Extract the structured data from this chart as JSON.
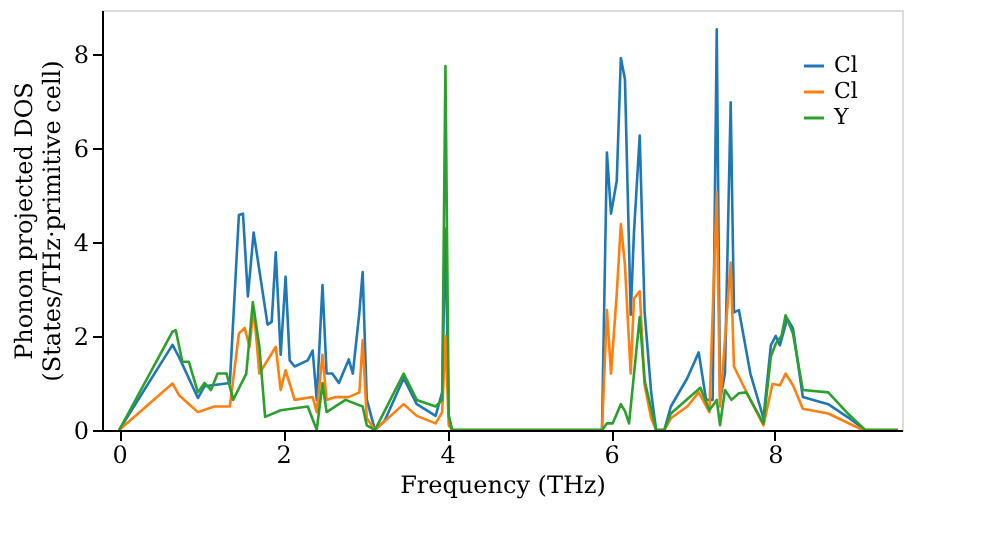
{
  "chart_data": {
    "type": "line",
    "xlabel": "Frequency (THz)",
    "ylabel": "Phonon projected DOS\n(States/THz·primitive cell)",
    "xlim": [
      -0.21,
      9.55
    ],
    "ylim": [
      0,
      8.93
    ],
    "xticks": [
      0,
      2,
      4,
      6,
      8
    ],
    "yticks": [
      0,
      2,
      4,
      6,
      8
    ],
    "legend": "top right",
    "grid": false,
    "series": [
      {
        "name": "Cl",
        "color": "#1f77b4",
        "x": [
          0,
          0.65,
          0.73,
          0.96,
          1.04,
          1.35,
          1.46,
          1.51,
          1.57,
          1.64,
          1.81,
          1.86,
          1.91,
          1.97,
          2.03,
          2.08,
          2.14,
          2.3,
          2.36,
          2.41,
          2.48,
          2.53,
          2.6,
          2.68,
          2.8,
          2.85,
          2.93,
          2.97,
          3.02,
          3.12,
          3.24,
          3.47,
          3.63,
          3.86,
          3.94,
          3.98,
          4.02,
          4.06,
          5.89,
          5.95,
          6.0,
          6.07,
          6.12,
          6.17,
          6.24,
          6.28,
          6.35,
          6.41,
          6.49,
          6.55,
          6.65,
          6.73,
          6.93,
          7.07,
          7.16,
          7.24,
          7.29,
          7.33,
          7.39,
          7.46,
          7.5,
          7.56,
          7.7,
          7.86,
          7.95,
          8.01,
          8.06,
          8.15,
          8.22,
          8.34,
          8.65,
          8.89,
          9.1,
          9.5
        ],
        "values": [
          0,
          1.81,
          1.55,
          0.68,
          0.93,
          1.0,
          4.57,
          4.6,
          2.84,
          4.2,
          2.24,
          2.3,
          3.78,
          1.6,
          3.26,
          1.48,
          1.35,
          1.48,
          1.69,
          0.64,
          3.08,
          1.2,
          1.2,
          1.0,
          1.5,
          1.2,
          2.5,
          3.36,
          0.65,
          0,
          0.2,
          1.1,
          0.55,
          0.3,
          0.8,
          4.28,
          0.3,
          0,
          0,
          5.9,
          4.6,
          5.3,
          7.91,
          7.46,
          2.45,
          4.2,
          6.26,
          2.5,
          0.8,
          0,
          0,
          0.5,
          1.1,
          1.65,
          0.64,
          0.64,
          8.52,
          0.64,
          1.2,
          6.97,
          2.5,
          2.55,
          1.2,
          0.25,
          1.8,
          2.0,
          1.8,
          2.37,
          2.16,
          0.7,
          0.55,
          0.27,
          0,
          0
        ]
      },
      {
        "name": "Cl",
        "color": "#ff7f0e",
        "x": [
          0,
          0.65,
          0.73,
          0.96,
          1.16,
          1.35,
          1.46,
          1.53,
          1.59,
          1.64,
          1.71,
          1.91,
          1.97,
          2.03,
          2.14,
          2.36,
          2.41,
          2.48,
          2.53,
          2.64,
          2.8,
          2.93,
          2.97,
          3.02,
          3.12,
          3.47,
          3.63,
          3.86,
          3.94,
          3.98,
          4.02,
          4.06,
          5.89,
          5.95,
          6.0,
          6.07,
          6.12,
          6.17,
          6.24,
          6.28,
          6.35,
          6.41,
          6.49,
          6.55,
          6.65,
          6.73,
          6.93,
          7.07,
          7.2,
          7.29,
          7.33,
          7.46,
          7.5,
          7.62,
          7.86,
          7.97,
          8.06,
          8.13,
          8.22,
          8.34,
          8.65,
          9.07,
          9.5
        ],
        "values": [
          0,
          0.99,
          0.74,
          0.38,
          0.5,
          0.5,
          2.05,
          2.17,
          1.77,
          2.6,
          1.2,
          1.77,
          0.85,
          1.27,
          0.64,
          0.7,
          0.38,
          1.6,
          0.64,
          0.7,
          0.7,
          0.8,
          1.91,
          0.25,
          0,
          0.55,
          0.3,
          0.14,
          0.38,
          2.0,
          0.1,
          0,
          0,
          2.55,
          1.2,
          2.9,
          4.38,
          3.5,
          1.2,
          2.8,
          2.95,
          0.95,
          0.25,
          0,
          0,
          0.25,
          0.5,
          0.8,
          0.38,
          5.06,
          0.5,
          3.56,
          1.35,
          0.92,
          0.1,
          0.98,
          0.95,
          1.2,
          0.95,
          0.45,
          0.35,
          0,
          0
        ]
      },
      {
        "name": "Y",
        "color": "#2ca02c",
        "x": [
          0,
          0.65,
          0.69,
          0.77,
          0.85,
          0.96,
          1.04,
          1.12,
          1.2,
          1.31,
          1.39,
          1.55,
          1.63,
          1.71,
          1.78,
          1.97,
          2.3,
          2.41,
          2.48,
          2.53,
          2.76,
          2.97,
          3.02,
          3.12,
          3.47,
          3.63,
          3.86,
          3.94,
          3.98,
          4.02,
          4.06,
          5.89,
          5.95,
          6.02,
          6.12,
          6.17,
          6.22,
          6.35,
          6.41,
          6.55,
          6.65,
          6.73,
          7.09,
          7.2,
          7.29,
          7.33,
          7.39,
          7.47,
          7.56,
          7.65,
          7.86,
          7.95,
          8.01,
          8.08,
          8.13,
          8.22,
          8.34,
          8.65,
          8.89,
          9.1,
          9.5
        ],
        "values": [
          0,
          2.09,
          2.12,
          1.45,
          1.45,
          0.8,
          1.0,
          0.85,
          1.2,
          1.2,
          0.64,
          1.2,
          2.72,
          1.77,
          0.28,
          0.42,
          0.5,
          0,
          1.0,
          0.38,
          0.64,
          0.5,
          0.1,
          0,
          1.2,
          0.64,
          0.5,
          0.64,
          7.74,
          0.3,
          0,
          0,
          0.14,
          0.14,
          0.55,
          0.4,
          0.14,
          2.4,
          1.05,
          0,
          0,
          0.35,
          0.9,
          0.42,
          0.64,
          0.1,
          0.85,
          0.64,
          0.78,
          0.8,
          0.14,
          1.56,
          1.84,
          2.0,
          2.44,
          2.05,
          0.85,
          0.8,
          0.35,
          0,
          0
        ]
      }
    ]
  }
}
